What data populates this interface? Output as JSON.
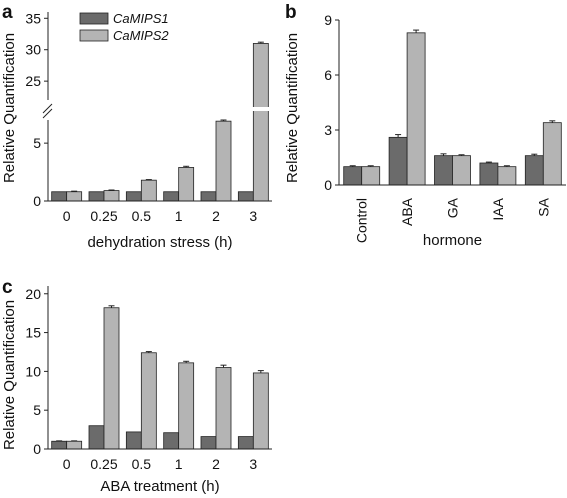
{
  "legend": [
    {
      "name": "CaMIPS1",
      "color": "#6b6b6b"
    },
    {
      "name": "CaMIPS2",
      "color": "#b4b4b4"
    }
  ],
  "chart_data": [
    {
      "panel": "a",
      "type": "bar",
      "xlabel": "dehydration stress (h)",
      "ylabel": "Relative Quantification",
      "categories": [
        "0",
        "0.25",
        "0.5",
        "1",
        "2",
        "3"
      ],
      "series": [
        {
          "name": "CaMIPS1",
          "values": [
            0.8,
            0.8,
            0.8,
            0.8,
            0.8,
            0.8
          ],
          "errors": [
            0,
            0,
            0,
            0,
            0,
            0
          ]
        },
        {
          "name": "CaMIPS2",
          "values": [
            0.8,
            0.9,
            1.8,
            2.9,
            6.9,
            31.0
          ],
          "errors": [
            0.05,
            0.05,
            0.05,
            0.1,
            0.1,
            0.2
          ]
        }
      ],
      "axis_break": {
        "lower": [
          0,
          7
        ],
        "upper": [
          22,
          36
        ]
      },
      "yticks_lower": [
        0,
        5
      ],
      "yticks_upper": [
        25,
        30,
        35
      ]
    },
    {
      "panel": "b",
      "type": "bar",
      "xlabel": "hormone",
      "ylabel": "Relative Quantification",
      "categories": [
        "Control",
        "ABA",
        "GA",
        "IAA",
        "SA"
      ],
      "series": [
        {
          "name": "CaMIPS1",
          "values": [
            1.0,
            2.6,
            1.6,
            1.2,
            1.6
          ],
          "errors": [
            0.05,
            0.15,
            0.1,
            0.05,
            0.08
          ]
        },
        {
          "name": "CaMIPS2",
          "values": [
            1.0,
            8.3,
            1.6,
            1.0,
            3.4
          ],
          "errors": [
            0.05,
            0.15,
            0.05,
            0.05,
            0.1
          ]
        }
      ],
      "ylim": [
        0,
        9
      ],
      "yticks": [
        0,
        3,
        6,
        9
      ]
    },
    {
      "panel": "c",
      "type": "bar",
      "xlabel": "ABA treatment (h)",
      "ylabel": "Relative Quantification",
      "categories": [
        "0",
        "0.25",
        "0.5",
        "1",
        "2",
        "3"
      ],
      "series": [
        {
          "name": "CaMIPS1",
          "values": [
            1.0,
            3.0,
            2.2,
            2.1,
            1.6,
            1.6
          ],
          "errors": [
            0.05,
            0,
            0,
            0,
            0,
            0
          ]
        },
        {
          "name": "CaMIPS2",
          "values": [
            1.0,
            18.2,
            12.4,
            11.1,
            10.5,
            9.8
          ],
          "errors": [
            0.05,
            0.25,
            0.15,
            0.2,
            0.3,
            0.3
          ]
        }
      ],
      "ylim": [
        0,
        21
      ],
      "yticks": [
        0,
        5,
        10,
        15,
        20
      ]
    }
  ]
}
